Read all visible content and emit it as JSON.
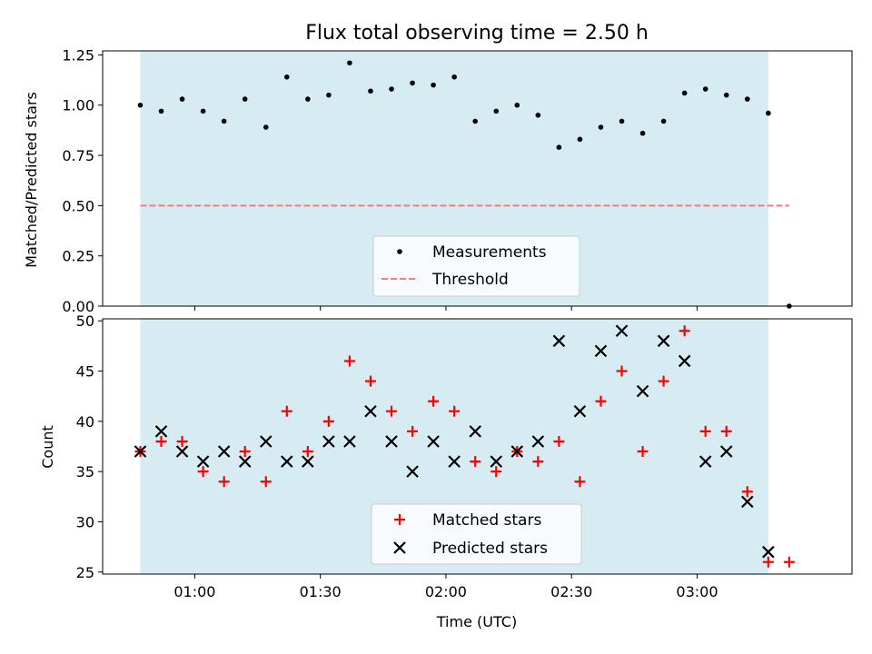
{
  "title": "Flux total observing time = 2.50 h",
  "colors": {
    "band": "#add8e6",
    "measurement": "#000000",
    "threshold": "#f08080",
    "matched": "#ff0000",
    "predicted": "#000000"
  },
  "chart_data": [
    {
      "type": "scatter",
      "ylabel": "Matched/Predicted stars",
      "ylim": [
        0,
        1.27
      ],
      "yticks": [
        "0.00",
        "0.25",
        "0.50",
        "0.75",
        "1.00",
        "1.25"
      ],
      "xlim": [
        "00:38",
        "03:37"
      ],
      "observing_window": [
        "00:47",
        "03:17"
      ],
      "threshold": 0.5,
      "legend": {
        "placement": "lower center",
        "entries": [
          "Measurements",
          "Threshold"
        ]
      },
      "series": [
        {
          "name": "Measurements",
          "x": [
            "00:47",
            "00:52",
            "00:57",
            "01:02",
            "01:07",
            "01:12",
            "01:17",
            "01:22",
            "01:27",
            "01:32",
            "01:37",
            "01:42",
            "01:47",
            "01:52",
            "01:57",
            "02:02",
            "02:07",
            "02:12",
            "02:17",
            "02:22",
            "02:27",
            "02:32",
            "02:37",
            "02:42",
            "02:47",
            "02:52",
            "02:57",
            "03:02",
            "03:07",
            "03:12",
            "03:17",
            "03:22"
          ],
          "y": [
            1.0,
            0.97,
            1.03,
            0.97,
            0.92,
            1.03,
            0.89,
            1.14,
            1.03,
            1.05,
            1.21,
            1.07,
            1.08,
            1.11,
            1.1,
            1.14,
            0.92,
            0.97,
            1.0,
            0.95,
            0.79,
            0.83,
            0.89,
            0.92,
            0.86,
            0.92,
            1.06,
            1.08,
            1.05,
            1.03,
            0.96,
            0.0
          ]
        }
      ]
    },
    {
      "type": "scatter",
      "xlabel": "Time (UTC)",
      "ylabel": "Count",
      "ylim": [
        24.8,
        50.2
      ],
      "yticks": [
        "25",
        "30",
        "35",
        "40",
        "45",
        "50"
      ],
      "xlim": [
        "00:38",
        "03:37"
      ],
      "xticks": [
        "01:00",
        "01:30",
        "02:00",
        "02:30",
        "03:00"
      ],
      "observing_window": [
        "00:47",
        "03:17"
      ],
      "legend": {
        "placement": "lower center",
        "entries": [
          "Matched stars",
          "Predicted stars"
        ]
      },
      "series": [
        {
          "name": "Matched stars",
          "x": [
            "00:47",
            "00:52",
            "00:57",
            "01:02",
            "01:07",
            "01:12",
            "01:17",
            "01:22",
            "01:27",
            "01:32",
            "01:37",
            "01:42",
            "01:47",
            "01:52",
            "01:57",
            "02:02",
            "02:07",
            "02:12",
            "02:17",
            "02:22",
            "02:27",
            "02:32",
            "02:37",
            "02:42",
            "02:47",
            "02:52",
            "02:57",
            "03:02",
            "03:07",
            "03:12",
            "03:17",
            "03:22"
          ],
          "y": [
            37,
            38,
            38,
            35,
            34,
            37,
            34,
            41,
            37,
            40,
            46,
            44,
            41,
            39,
            42,
            41,
            36,
            35,
            37,
            36,
            38,
            34,
            42,
            45,
            37,
            44,
            49,
            39,
            39,
            33,
            26,
            26
          ]
        },
        {
          "name": "Predicted stars",
          "x": [
            "00:47",
            "00:52",
            "00:57",
            "01:02",
            "01:07",
            "01:12",
            "01:17",
            "01:22",
            "01:27",
            "01:32",
            "01:37",
            "01:42",
            "01:47",
            "01:52",
            "01:57",
            "02:02",
            "02:07",
            "02:12",
            "02:17",
            "02:22",
            "02:27",
            "02:32",
            "02:37",
            "02:42",
            "02:47",
            "02:52",
            "02:57",
            "03:02",
            "03:07",
            "03:12",
            "03:17"
          ],
          "y": [
            37,
            39,
            37,
            36,
            37,
            36,
            38,
            36,
            36,
            38,
            38,
            41,
            38,
            35,
            38,
            36,
            39,
            36,
            37,
            38,
            48,
            41,
            47,
            49,
            43,
            48,
            46,
            36,
            37,
            32,
            27
          ]
        }
      ]
    }
  ]
}
